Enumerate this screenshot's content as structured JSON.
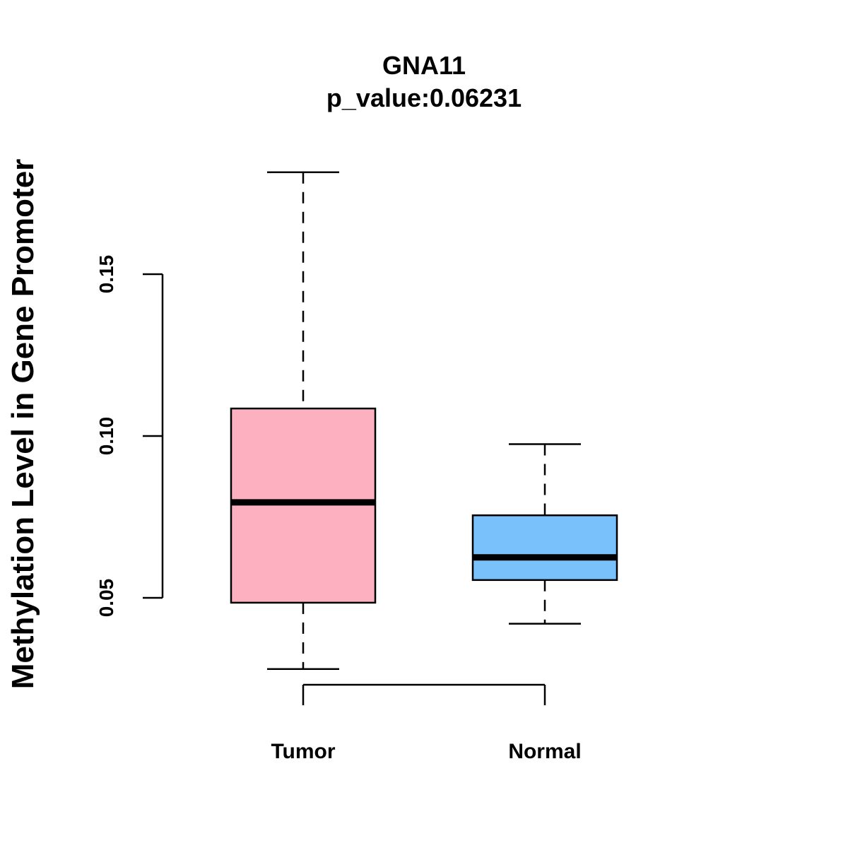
{
  "chart_data": {
    "type": "boxplot",
    "title": "GNA11",
    "subtitle": "p_value:0.06231",
    "xlabel": "",
    "ylabel": "Methylation Level in Gene Promoter",
    "yticks": [
      0.05,
      0.1,
      0.15
    ],
    "ytick_labels": [
      "0.05",
      "0.10",
      "0.15"
    ],
    "grid": false,
    "categories": [
      "Tumor",
      "Normal"
    ],
    "boxes": [
      {
        "category": "Tumor",
        "whisker_low": 0.028,
        "q1": 0.0485,
        "median": 0.0795,
        "q3": 0.1085,
        "whisker_high": 0.1815,
        "color": "#FDB0C0"
      },
      {
        "category": "Normal",
        "whisker_low": 0.042,
        "q1": 0.0555,
        "median": 0.0625,
        "q3": 0.0755,
        "whisker_high": 0.0975,
        "color": "#78C1FB"
      }
    ]
  }
}
